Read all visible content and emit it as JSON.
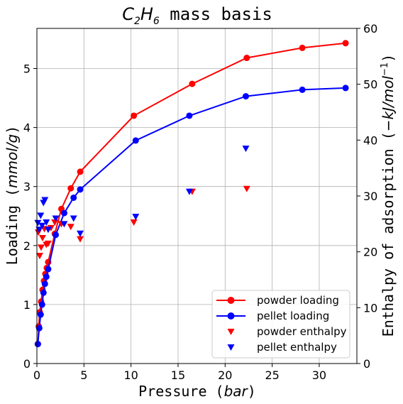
{
  "chart_data": {
    "type": "scatter",
    "title": "C2H6 mass basis",
    "title_parts": {
      "main1": "C",
      "sub1": "2",
      "main2": "H",
      "sub2": "6",
      "rest": " mass basis"
    },
    "xlabel": "Pressure (bar)",
    "xlabel_parts": {
      "text": "Pressure ",
      "ital": "bar"
    },
    "ylabel": "Loading (mmol/g)",
    "ylabel_parts": {
      "text": "Loading ",
      "ital": "mmol/g"
    },
    "y2label": "Enthalpy of adsorption (−kJ/mol⁻¹)",
    "y2label_parts": {
      "text": "Enthalpy of adsorption ",
      "ital": "−kJ/mol",
      "sup": "−1"
    },
    "xlim": [
      0,
      34
    ],
    "ylim": [
      0,
      5.68
    ],
    "y2lim": [
      0,
      60
    ],
    "xticks": [
      0,
      5,
      10,
      15,
      20,
      25,
      30
    ],
    "yticks": [
      0,
      1,
      2,
      3,
      4,
      5
    ],
    "y2ticks": [
      0,
      10,
      20,
      30,
      40,
      50,
      60
    ],
    "grid": true,
    "legend_position": "lower-right",
    "series": [
      {
        "name": "powder loading",
        "kind": "line-marker",
        "axis": "left",
        "color": "#ff0000",
        "x": [
          0.1,
          0.2,
          0.3,
          0.45,
          0.6,
          0.75,
          0.9,
          1.05,
          1.2,
          1.9,
          2.6,
          3.6,
          4.6,
          10.3,
          16.5,
          22.3,
          28.2,
          32.8
        ],
        "y": [
          0.33,
          0.63,
          0.87,
          1.05,
          1.25,
          1.4,
          1.52,
          1.62,
          1.72,
          2.2,
          2.62,
          2.97,
          3.25,
          4.2,
          4.74,
          5.18,
          5.35,
          5.43
        ]
      },
      {
        "name": "pellet loading",
        "kind": "line-marker",
        "axis": "left",
        "color": "#0000ff",
        "x": [
          0.1,
          0.25,
          0.4,
          0.55,
          0.7,
          0.85,
          1.0,
          1.2,
          2.0,
          2.9,
          3.9,
          4.6,
          10.5,
          16.2,
          22.2,
          28.2,
          32.8
        ],
        "y": [
          0.33,
          0.6,
          0.83,
          1.0,
          1.2,
          1.35,
          1.47,
          1.6,
          2.18,
          2.55,
          2.81,
          2.95,
          3.78,
          4.2,
          4.53,
          4.64,
          4.67
        ]
      },
      {
        "name": "powder enthalpy",
        "kind": "marker",
        "marker": "down-triangle",
        "axis": "right",
        "color": "#ff0000",
        "x": [
          0.15,
          0.3,
          0.45,
          0.6,
          0.8,
          1.0,
          1.2,
          1.5,
          1.9,
          2.6,
          3.6,
          4.6,
          10.3,
          16.5,
          22.3
        ],
        "y": [
          23.5,
          19.3,
          20.8,
          22.5,
          24.1,
          21.3,
          21.5,
          24.3,
          25.3,
          25.0,
          24.5,
          22.3,
          25.3,
          30.8,
          31.3
        ]
      },
      {
        "name": "pellet enthalpy",
        "kind": "marker",
        "marker": "down-triangle",
        "axis": "right",
        "color": "#0000ff",
        "x": [
          0.1,
          0.25,
          0.4,
          0.55,
          0.7,
          0.85,
          1.0,
          1.2,
          2.0,
          2.9,
          3.9,
          4.6,
          10.5,
          16.2,
          22.2
        ],
        "y": [
          25.2,
          24.0,
          26.5,
          24.7,
          28.8,
          29.3,
          25.3,
          24.0,
          26.0,
          25.0,
          26.0,
          23.3,
          26.3,
          30.8,
          38.5
        ]
      }
    ]
  }
}
